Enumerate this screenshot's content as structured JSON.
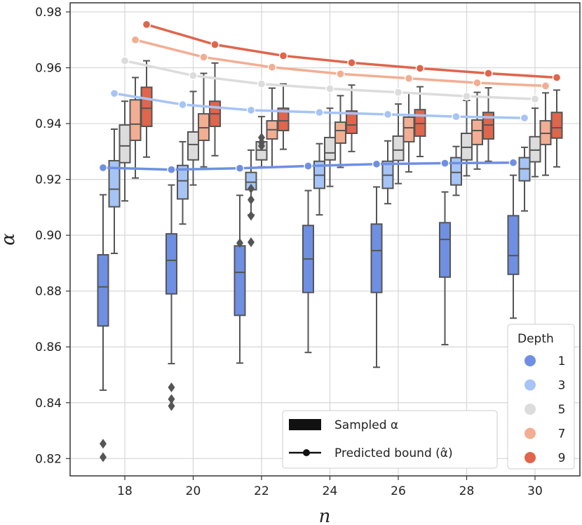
{
  "chart_data": {
    "type": "box",
    "xlabel": "n",
    "ylabel": "α",
    "x_ticks": [
      "18",
      "20",
      "22",
      "24",
      "26",
      "28",
      "30"
    ],
    "y_ticks": [
      "0.82",
      "0.84",
      "0.86",
      "0.88",
      "0.90",
      "0.92",
      "0.94",
      "0.96",
      "0.98"
    ],
    "ylim": [
      0.815,
      0.983
    ],
    "grid": true,
    "hue_legend": {
      "title": "Depth",
      "position": "bottom-right",
      "entries": [
        {
          "label": "1",
          "color": "#6f8fe3"
        },
        {
          "label": "3",
          "color": "#a6c4f5"
        },
        {
          "label": "5",
          "color": "#dcdcdc"
        },
        {
          "label": "7",
          "color": "#f2ae92"
        },
        {
          "label": "9",
          "color": "#e0654c"
        }
      ]
    },
    "style_legend": {
      "position": "bottom-center",
      "entries": [
        {
          "label": "Sampled α",
          "marker": "box"
        },
        {
          "label": "Predicted bound (α̂)",
          "marker": "line-dot"
        }
      ]
    },
    "box_series": [
      {
        "depth": "1",
        "boxes": [
          {
            "n": 18,
            "min": 0.8445,
            "q1": 0.8675,
            "median": 0.8815,
            "q3": 0.893,
            "max": 0.9145,
            "outliers": [
              0.8253,
              0.8205
            ]
          },
          {
            "n": 20,
            "min": 0.854,
            "q1": 0.879,
            "median": 0.891,
            "q3": 0.9005,
            "max": 0.918,
            "outliers": [
              0.8455,
              0.8413,
              0.8388
            ]
          },
          {
            "n": 22,
            "min": 0.8542,
            "q1": 0.8713,
            "median": 0.8867,
            "q3": 0.8962,
            "max": 0.9143,
            "outliers": [
              0.8972
            ]
          },
          {
            "n": 24,
            "min": 0.858,
            "q1": 0.8795,
            "median": 0.8915,
            "q3": 0.9035,
            "max": 0.916,
            "outliers": []
          },
          {
            "n": 26,
            "min": 0.8527,
            "q1": 0.8795,
            "median": 0.8945,
            "q3": 0.904,
            "max": 0.9173,
            "outliers": []
          },
          {
            "n": 28,
            "min": 0.8608,
            "q1": 0.885,
            "median": 0.8985,
            "q3": 0.9045,
            "max": 0.9155,
            "outliers": []
          },
          {
            "n": 30,
            "min": 0.8703,
            "q1": 0.886,
            "median": 0.8927,
            "q3": 0.907,
            "max": 0.9215,
            "outliers": []
          }
        ]
      },
      {
        "depth": "3",
        "boxes": [
          {
            "n": 18,
            "min": 0.8935,
            "q1": 0.9102,
            "median": 0.9165,
            "q3": 0.9267,
            "max": 0.938,
            "outliers": []
          },
          {
            "n": 20,
            "min": 0.904,
            "q1": 0.913,
            "median": 0.9195,
            "q3": 0.925,
            "max": 0.9335,
            "outliers": []
          },
          {
            "n": 22,
            "min": 0.9073,
            "q1": 0.9163,
            "median": 0.919,
            "q3": 0.9225,
            "max": 0.9305,
            "outliers": [
              0.9127,
              0.9167,
              0.907,
              0.8975
            ]
          },
          {
            "n": 24,
            "min": 0.9073,
            "q1": 0.9168,
            "median": 0.9215,
            "q3": 0.9265,
            "max": 0.9328,
            "outliers": []
          },
          {
            "n": 26,
            "min": 0.9113,
            "q1": 0.9168,
            "median": 0.9215,
            "q3": 0.9265,
            "max": 0.9338,
            "outliers": []
          },
          {
            "n": 28,
            "min": 0.9143,
            "q1": 0.918,
            "median": 0.9225,
            "q3": 0.9278,
            "max": 0.9318,
            "outliers": []
          },
          {
            "n": 30,
            "min": 0.9087,
            "q1": 0.9195,
            "median": 0.9238,
            "q3": 0.9278,
            "max": 0.9315,
            "outliers": []
          }
        ]
      },
      {
        "depth": "5",
        "boxes": [
          {
            "n": 18,
            "min": 0.9123,
            "q1": 0.926,
            "median": 0.932,
            "q3": 0.9395,
            "max": 0.948,
            "outliers": []
          },
          {
            "n": 20,
            "min": 0.918,
            "q1": 0.927,
            "median": 0.9325,
            "q3": 0.937,
            "max": 0.9515,
            "outliers": []
          },
          {
            "n": 22,
            "min": 0.9245,
            "q1": 0.927,
            "median": 0.9305,
            "q3": 0.9335,
            "max": 0.9425,
            "outliers": [
              0.9333,
              0.935,
              0.932
            ]
          },
          {
            "n": 24,
            "min": 0.9175,
            "q1": 0.927,
            "median": 0.9295,
            "q3": 0.935,
            "max": 0.9455,
            "outliers": []
          },
          {
            "n": 26,
            "min": 0.9185,
            "q1": 0.9268,
            "median": 0.9305,
            "q3": 0.9355,
            "max": 0.947,
            "outliers": []
          },
          {
            "n": 28,
            "min": 0.9213,
            "q1": 0.927,
            "median": 0.9315,
            "q3": 0.9365,
            "max": 0.9483,
            "outliers": []
          },
          {
            "n": 30,
            "min": 0.921,
            "q1": 0.9263,
            "median": 0.9305,
            "q3": 0.9353,
            "max": 0.9455,
            "outliers": []
          }
        ]
      },
      {
        "depth": "7",
        "boxes": [
          {
            "n": 18,
            "min": 0.9205,
            "q1": 0.934,
            "median": 0.9398,
            "q3": 0.9485,
            "max": 0.9565,
            "outliers": []
          },
          {
            "n": 20,
            "min": 0.9245,
            "q1": 0.934,
            "median": 0.9385,
            "q3": 0.9435,
            "max": 0.958,
            "outliers": []
          },
          {
            "n": 22,
            "min": 0.9243,
            "q1": 0.9345,
            "median": 0.9378,
            "q3": 0.941,
            "max": 0.9527,
            "outliers": []
          },
          {
            "n": 24,
            "min": 0.9243,
            "q1": 0.933,
            "median": 0.9375,
            "q3": 0.9405,
            "max": 0.95,
            "outliers": []
          },
          {
            "n": 26,
            "min": 0.9227,
            "q1": 0.9335,
            "median": 0.9385,
            "q3": 0.9423,
            "max": 0.951,
            "outliers": []
          },
          {
            "n": 28,
            "min": 0.9237,
            "q1": 0.9325,
            "median": 0.9375,
            "q3": 0.9413,
            "max": 0.9512,
            "outliers": []
          },
          {
            "n": 30,
            "min": 0.9215,
            "q1": 0.9325,
            "median": 0.9365,
            "q3": 0.941,
            "max": 0.951,
            "outliers": []
          }
        ]
      },
      {
        "depth": "9",
        "boxes": [
          {
            "n": 18,
            "min": 0.928,
            "q1": 0.939,
            "median": 0.9455,
            "q3": 0.953,
            "max": 0.9625,
            "outliers": []
          },
          {
            "n": 20,
            "min": 0.9285,
            "q1": 0.939,
            "median": 0.9435,
            "q3": 0.948,
            "max": 0.9617,
            "outliers": []
          },
          {
            "n": 22,
            "min": 0.9308,
            "q1": 0.9375,
            "median": 0.941,
            "q3": 0.9455,
            "max": 0.9542,
            "outliers": []
          },
          {
            "n": 24,
            "min": 0.93,
            "q1": 0.9365,
            "median": 0.9395,
            "q3": 0.9445,
            "max": 0.9538,
            "outliers": []
          },
          {
            "n": 26,
            "min": 0.9282,
            "q1": 0.9355,
            "median": 0.94,
            "q3": 0.945,
            "max": 0.9532,
            "outliers": []
          },
          {
            "n": 28,
            "min": 0.9265,
            "q1": 0.9345,
            "median": 0.9395,
            "q3": 0.944,
            "max": 0.9528,
            "outliers": []
          },
          {
            "n": 30,
            "min": 0.9245,
            "q1": 0.9348,
            "median": 0.9385,
            "q3": 0.944,
            "max": 0.952,
            "outliers": []
          }
        ]
      }
    ],
    "bound_series": [
      {
        "depth": "1",
        "values": [
          0.9242,
          0.9235,
          0.924,
          0.9248,
          0.9255,
          0.9258,
          0.926
        ]
      },
      {
        "depth": "3",
        "values": [
          0.9508,
          0.9468,
          0.9448,
          0.944,
          0.9433,
          0.9425,
          0.942
        ]
      },
      {
        "depth": "5",
        "values": [
          0.9625,
          0.9572,
          0.9542,
          0.9525,
          0.9512,
          0.9498,
          0.9488
        ]
      },
      {
        "depth": "7",
        "values": [
          0.97,
          0.9638,
          0.9602,
          0.9578,
          0.9562,
          0.9546,
          0.9535
        ]
      },
      {
        "depth": "9",
        "values": [
          0.9755,
          0.9683,
          0.9643,
          0.9618,
          0.9598,
          0.958,
          0.9565
        ]
      }
    ]
  }
}
